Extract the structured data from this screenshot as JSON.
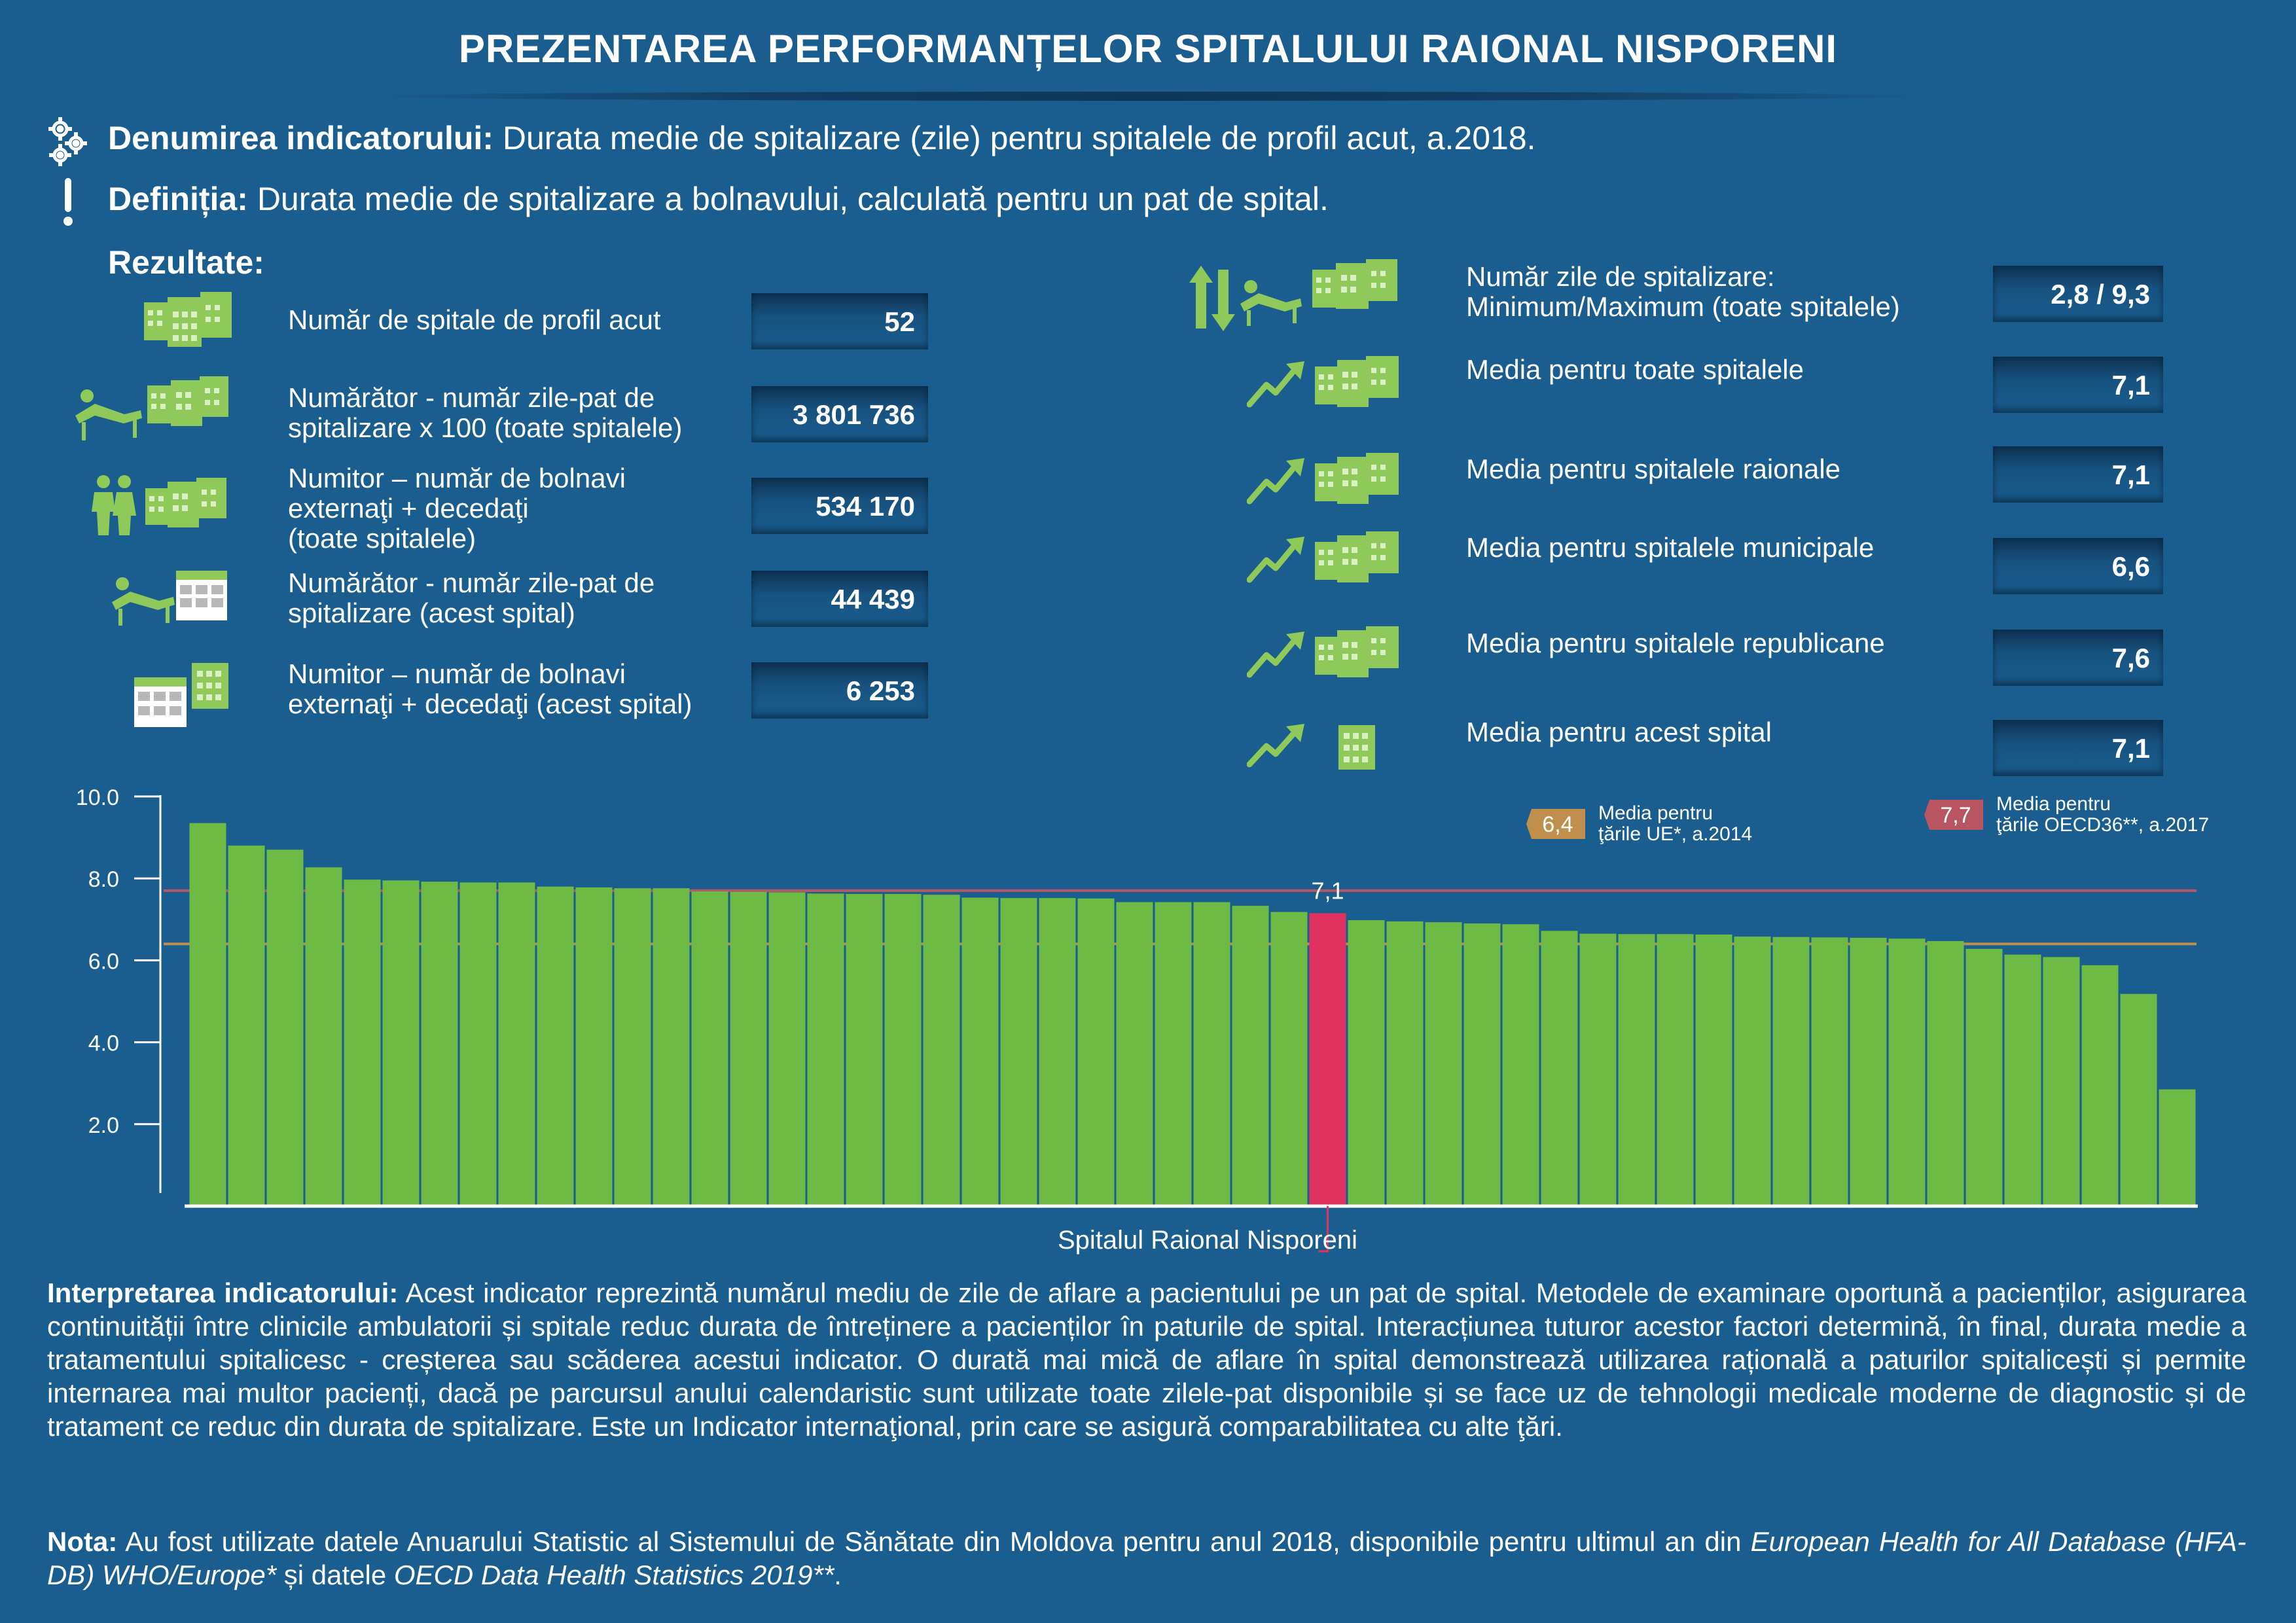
{
  "title": "PREZENTAREA PERFORMANȚELOR SPITALULUI RAIONAL NISPORENI",
  "indicator": {
    "label": "Denumirea indicatorului:",
    "value": "Durata medie de spitalizare (zile) pentru spitalele de profil acut, a.2018."
  },
  "definition": {
    "label": "Definiția:",
    "value": "Durata medie de spitalizare a bolnavului, calculată pentru un pat de spital."
  },
  "results_label": "Rezultate:",
  "left_stats": [
    {
      "line1": "Număr de spitale de profil acut",
      "line2": "",
      "line3": "",
      "value": "52",
      "icon": "hospital-buildings-icon"
    },
    {
      "line1": "Numărător - număr zile-pat de",
      "line2": "spitalizare x 100 (toate spitalele)",
      "line3": "",
      "value": "3 801 736",
      "icon": "patient-bed-hospitals-icon"
    },
    {
      "line1": "Numitor –  număr de bolnavi",
      "line2": "externaţi + decedaţi",
      "line3": "(toate spitalele)",
      "value": "534 170",
      "icon": "people-hospitals-icon"
    },
    {
      "line1": "Numărător - număr zile-pat de",
      "line2": "spitalizare (acest spital)",
      "line3": "",
      "value": "44 439",
      "icon": "patient-bed-calendar-icon"
    },
    {
      "line1": "Numitor – număr de bolnavi",
      "line2": "externaţi + decedaţi (acest spital)",
      "line3": "",
      "value": "6 253",
      "icon": "calendar-hospital-icon"
    }
  ],
  "right_stats": [
    {
      "line1": "Număr zile de spitalizare:",
      "line2": "Minimum/Maximum (toate spitalele)",
      "value": "2,8 / 9,3",
      "icon": "min-max-bed-hospitals-icon"
    },
    {
      "line1": "Media pentru toate spitalele",
      "line2": "",
      "value": "7,1",
      "icon": "trend-hospitals-icon"
    },
    {
      "line1": "Media pentru spitalele raionale",
      "line2": "",
      "value": "7,1",
      "icon": "trend-hospitals-icon"
    },
    {
      "line1": "Media pentru spitalele municipale",
      "line2": "",
      "value": "6,6",
      "icon": "trend-hospitals-icon"
    },
    {
      "line1": "Media pentru spitalele republicane",
      "line2": "",
      "value": "7,6",
      "icon": "trend-hospitals-icon"
    },
    {
      "line1": "Media pentru acest spital",
      "line2": "",
      "value": "7,1",
      "icon": "trend-hospital-icon"
    }
  ],
  "chart_data": {
    "type": "bar",
    "ylim": [
      0,
      10
    ],
    "yticks": [
      "10.0",
      "8.0",
      "6.0",
      "4.0",
      "2.0"
    ],
    "ytick_values": [
      10,
      8,
      6,
      4,
      2
    ],
    "values": [
      9.35,
      8.8,
      8.7,
      8.27,
      7.97,
      7.95,
      7.92,
      7.9,
      7.9,
      7.8,
      7.78,
      7.76,
      7.76,
      7.68,
      7.67,
      7.66,
      7.63,
      7.62,
      7.62,
      7.6,
      7.53,
      7.52,
      7.52,
      7.51,
      7.42,
      7.42,
      7.42,
      7.33,
      7.18,
      7.15,
      6.98,
      6.95,
      6.93,
      6.9,
      6.88,
      6.72,
      6.65,
      6.64,
      6.64,
      6.63,
      6.58,
      6.57,
      6.56,
      6.55,
      6.53,
      6.47,
      6.28,
      6.14,
      6.08,
      5.88,
      5.18,
      2.85
    ],
    "highlight_index": 29,
    "highlight_label": "7,1",
    "xlabel": "Spitalul Raional Nisporeni",
    "colors": {
      "bar": "#6dbb45",
      "highlight": "#e0325f",
      "eu": "#c08f4c",
      "oecd": "#b85560"
    },
    "reference_lines": [
      {
        "name": "eu",
        "value": 6.4,
        "badge": "6,4",
        "line1": "Media pentru",
        "line2": "ţările UE*, a.2014"
      },
      {
        "name": "oecd",
        "value": 7.7,
        "badge": "7,7",
        "line1": "Media pentru",
        "line2": "ţările OECD36**, a.2017"
      }
    ]
  },
  "interpretation": {
    "label": "Interpretarea indicatorului:",
    "text": " Acest indicator reprezintă numărul mediu de zile de aflare a pacientului pe un pat de spital. Metodele de examinare oportună a pacienților, asigurarea continuității între clinicile ambulatorii și spitale reduc durata de întreținere a pacienților în paturile de spital. Interacțiunea tuturor acestor factori determină, în final, durata medie a tratamentului spitalicesc - creșterea sau scăderea acestui indicator. O durată mai mică de aflare în spital demonstrează utilizarea rațională a paturilor spitalicești și permite internarea mai multor pacienți, dacă pe parcursul anului calendaristic sunt utilizate toate zilele-pat disponibile și se face uz de tehnologii medicale moderne de diagnostic și de tratament ce reduc din durata de spitalizare. Este un Indicator internaţional, prin care se asigură comparabilitatea cu alte ţări."
  },
  "note": {
    "label": "Nota:",
    "text1": " Au fost utilizate datele Anuarului Statistic al Sistemului de Sănătate din Moldova pentru anul 2018, disponibile pentru ultimul an din ",
    "italic1": "European Health for All Database (HFA-DB) WHO/Europe*",
    "text2": " și datele ",
    "italic2": "OECD Data Health Statistics 2019**",
    "text3": "."
  }
}
